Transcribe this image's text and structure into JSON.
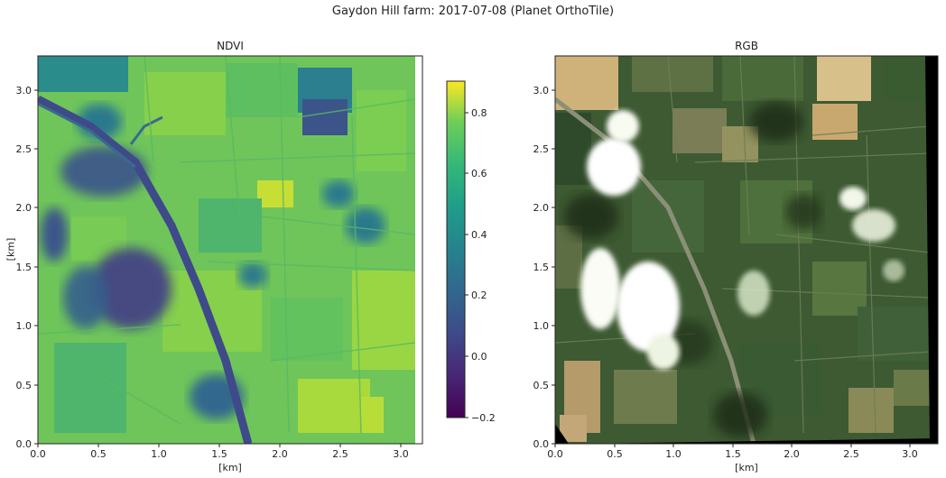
{
  "figure": {
    "title": "Gaydon Hill farm: 2017-07-08 (Planet OrthoTile)"
  },
  "panels": [
    {
      "title": "NDVI",
      "xlabel": "[km]",
      "ylabel": "[km]",
      "xlim": [
        0,
        3.25
      ],
      "ylim": [
        0,
        3.3
      ],
      "xticks": [
        "0.0",
        "0.5",
        "1.0",
        "1.5",
        "2.0",
        "2.5",
        "3.0"
      ],
      "yticks": [
        "0.0",
        "0.5",
        "1.0",
        "1.5",
        "2.0",
        "2.5",
        "3.0"
      ]
    },
    {
      "title": "RGB",
      "xlabel": "[km]",
      "xlim": [
        0,
        3.25
      ],
      "ylim": [
        0,
        3.3
      ],
      "xticks": [
        "0.0",
        "0.5",
        "1.0",
        "1.5",
        "2.0",
        "2.5",
        "3.0"
      ],
      "yticks": [
        "0.0",
        "0.5",
        "1.0",
        "1.5",
        "2.0",
        "2.5",
        "3.0"
      ]
    }
  ],
  "colorbar": {
    "colormap": "viridis",
    "range": [
      -0.25,
      0.9
    ],
    "ticks": [
      "−0.2",
      "0.0",
      "0.2",
      "0.4",
      "0.6",
      "0.8"
    ]
  }
}
